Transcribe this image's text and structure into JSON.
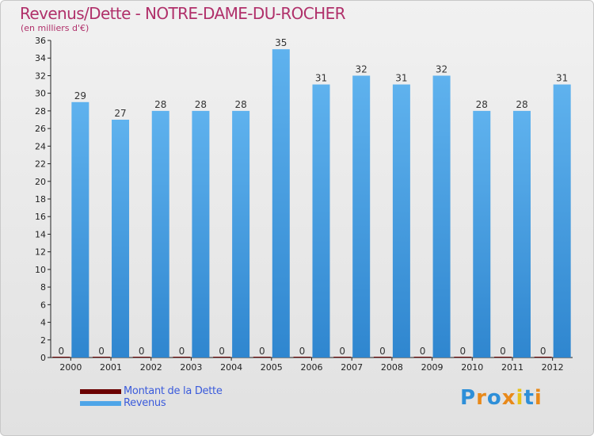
{
  "title": "Revenus/Dette - NOTRE-DAME-DU-ROCHER",
  "subtitle": "(en milliers d'€)",
  "colors": {
    "title": "#b0306a",
    "dette": "#6b0000",
    "revenus": "#4ea5e8"
  },
  "logo_text": "Proxiti",
  "legend": [
    {
      "label": "Montant de la Dette",
      "color": "#6b0000"
    },
    {
      "label": "Revenus",
      "color": "#4ea5e8"
    }
  ],
  "chart_data": {
    "type": "bar",
    "categories": [
      "2000",
      "2001",
      "2002",
      "2003",
      "2004",
      "2005",
      "2006",
      "2007",
      "2008",
      "2009",
      "2010",
      "2011",
      "2012"
    ],
    "series": [
      {
        "name": "Montant de la Dette",
        "values": [
          0,
          0,
          0,
          0,
          0,
          0,
          0,
          0,
          0,
          0,
          0,
          0,
          0
        ]
      },
      {
        "name": "Revenus",
        "values": [
          29,
          27,
          28,
          28,
          28,
          35,
          31,
          32,
          31,
          32,
          28,
          28,
          31
        ]
      }
    ],
    "ylim": [
      0,
      36
    ],
    "yticks": [
      0,
      2,
      4,
      6,
      8,
      10,
      12,
      14,
      16,
      18,
      20,
      22,
      24,
      26,
      28,
      30,
      32,
      34,
      36
    ],
    "title": "Revenus/Dette - NOTRE-DAME-DU-ROCHER",
    "ylabel": "(en milliers d'€)",
    "grid": false,
    "legend_position": "bottom-left"
  }
}
